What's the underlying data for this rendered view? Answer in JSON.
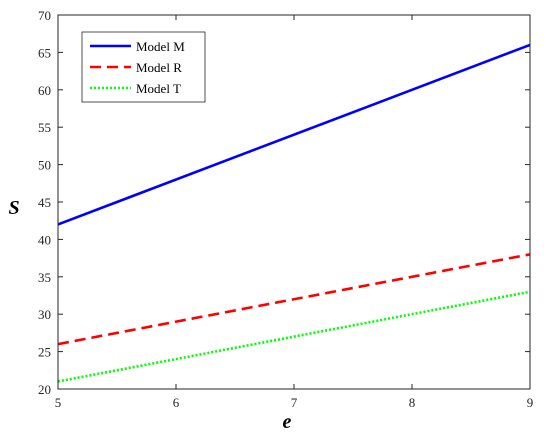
{
  "chart_data": {
    "type": "line",
    "title": "",
    "xlabel": "e",
    "ylabel": "S",
    "xlim": [
      5,
      9
    ],
    "ylim": [
      20,
      70
    ],
    "xticks": [
      5,
      6,
      7,
      8,
      9
    ],
    "yticks": [
      20,
      25,
      30,
      35,
      40,
      45,
      50,
      55,
      60,
      65,
      70
    ],
    "grid": false,
    "legend_position": "top-left",
    "series": [
      {
        "name": "Model M",
        "x": [
          5,
          9
        ],
        "y": [
          42,
          66
        ],
        "color": "#0000ff",
        "style": "solid"
      },
      {
        "name": "Model R",
        "x": [
          5,
          9
        ],
        "y": [
          26,
          38
        ],
        "color": "#ff0000",
        "style": "dashed"
      },
      {
        "name": "Model T",
        "x": [
          5,
          9
        ],
        "y": [
          21,
          33
        ],
        "color": "#00ff00",
        "style": "dotted"
      }
    ]
  }
}
